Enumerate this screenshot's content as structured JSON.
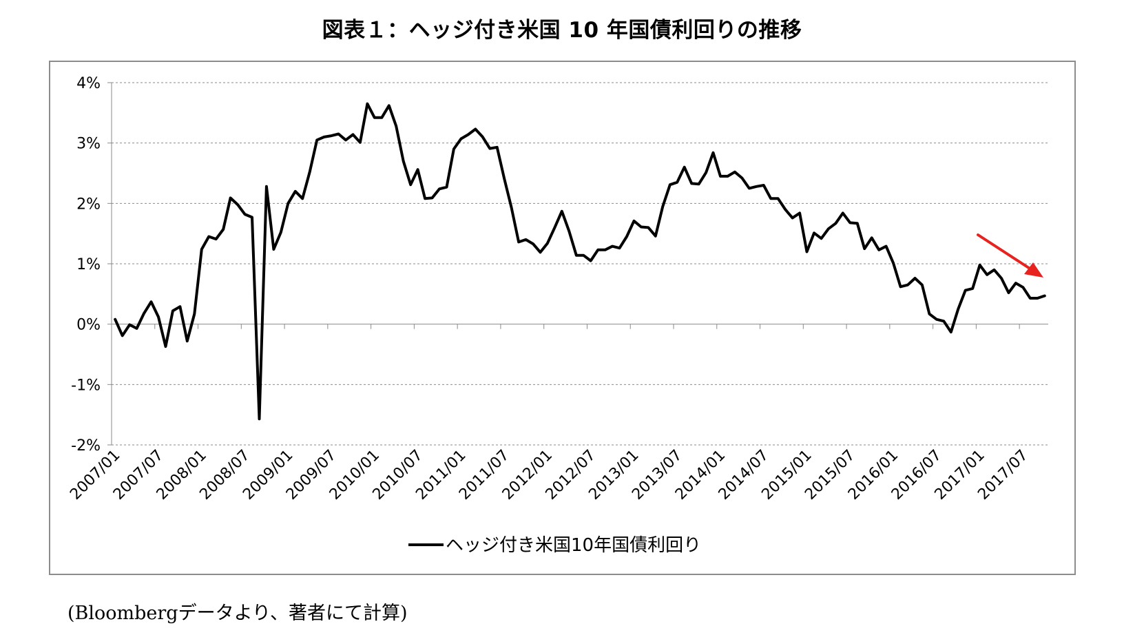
{
  "title": "図表１：ヘッジ付き米国 10 年国債利回りの推移",
  "source_note": "(Bloombergデータより、著者にて計算)",
  "chart_data": {
    "type": "line",
    "title": "図表１：ヘッジ付き米国 10 年国債利回りの推移",
    "xlabel": "",
    "ylabel": "",
    "ylim": [
      -2,
      4
    ],
    "yticks": [
      "-2%",
      "-1%",
      "0%",
      "1%",
      "2%",
      "3%",
      "4%"
    ],
    "ytick_values": [
      -2,
      -1,
      0,
      1,
      2,
      3,
      4
    ],
    "grid": true,
    "legend_position": "bottom",
    "xtick_labels": [
      "2007/01",
      "2007/07",
      "2008/01",
      "2008/07",
      "2009/01",
      "2009/07",
      "2010/01",
      "2010/07",
      "2011/01",
      "2011/07",
      "2012/01",
      "2012/07",
      "2013/01",
      "2013/07",
      "2014/01",
      "2014/07",
      "2015/01",
      "2015/07",
      "2016/01",
      "2016/07",
      "2017/01",
      "2017/07"
    ],
    "x_start": "2007/01",
    "line_color": "#000000",
    "annotation_arrow_color": "#e8221e",
    "annotation": "downward-trend-arrow",
    "series": [
      {
        "name": "ヘッジ付き米国10年国債利回り",
        "values": [
          0.08,
          -0.19,
          -0.01,
          -0.07,
          0.18,
          0.37,
          0.12,
          -0.37,
          0.22,
          0.29,
          -0.28,
          0.17,
          1.24,
          1.45,
          1.41,
          1.57,
          2.09,
          1.98,
          1.82,
          1.77,
          -1.57,
          2.28,
          1.24,
          1.52,
          2.0,
          2.2,
          2.08,
          2.52,
          3.05,
          3.1,
          3.12,
          3.15,
          3.05,
          3.14,
          3.01,
          3.65,
          3.42,
          3.42,
          3.62,
          3.28,
          2.7,
          2.31,
          2.56,
          2.08,
          2.09,
          2.24,
          2.27,
          2.9,
          3.07,
          3.14,
          3.23,
          3.1,
          2.91,
          2.93,
          2.41,
          1.93,
          1.36,
          1.4,
          1.33,
          1.19,
          1.34,
          1.6,
          1.87,
          1.54,
          1.14,
          1.14,
          1.05,
          1.23,
          1.23,
          1.29,
          1.26,
          1.45,
          1.71,
          1.61,
          1.6,
          1.46,
          1.95,
          2.31,
          2.35,
          2.6,
          2.33,
          2.32,
          2.51,
          2.84,
          2.45,
          2.45,
          2.52,
          2.42,
          2.25,
          2.28,
          2.3,
          2.08,
          2.08,
          1.9,
          1.76,
          1.84,
          1.2,
          1.51,
          1.42,
          1.58,
          1.67,
          1.84,
          1.68,
          1.67,
          1.25,
          1.43,
          1.23,
          1.29,
          1.01,
          0.62,
          0.65,
          0.76,
          0.65,
          0.17,
          0.08,
          0.05,
          -0.13,
          0.25,
          0.56,
          0.59,
          0.98,
          0.82,
          0.9,
          0.76,
          0.52,
          0.68,
          0.61,
          0.43,
          0.43,
          0.47
        ]
      }
    ]
  }
}
